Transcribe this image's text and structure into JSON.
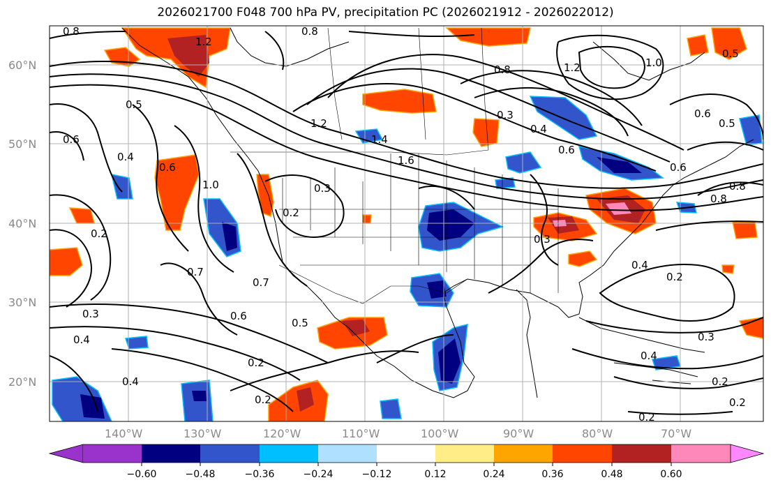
{
  "title": "2026021700 F048 700 hPa PV, precipitation PC (2026021912 - 2026022012)",
  "map": {
    "lat_labels": [
      "60°N",
      "50°N",
      "40°N",
      "30°N",
      "20°N"
    ],
    "lon_labels": [
      "140°W",
      "130°W",
      "120°W",
      "110°W",
      "100°W",
      "90°W",
      "80°W",
      "70°W"
    ],
    "extent": {
      "lon_min": -150,
      "lon_max": -62,
      "lat_min": 15,
      "lat_max": 65
    },
    "contour_labels": [
      "0.8",
      "1.2",
      "0.8",
      "0.8",
      "1.0",
      "1.2",
      "0.5",
      "0.5",
      "0.6",
      "0.4",
      "0.6",
      "1.0",
      "1.2",
      "1.4",
      "1.6",
      "0.3",
      "0.3",
      "0.4",
      "0.6",
      "0.8",
      "0.6",
      "0.5",
      "0.6",
      "0.8",
      "0.2",
      "0.2",
      "0.7",
      "0.7",
      "0.3",
      "0.4",
      "0.6",
      "0.5",
      "0.2",
      "0.2",
      "0.4",
      "0.2",
      "0.3",
      "0.4",
      "0.2",
      "0.2",
      "0.2",
      "0.3",
      "0.4"
    ]
  },
  "colorbar": {
    "ticks": [
      "−0.60",
      "−0.48",
      "−0.36",
      "−0.24",
      "−0.12",
      "0.12",
      "0.24",
      "0.36",
      "0.48",
      "0.60"
    ],
    "colors": [
      "#9933cc",
      "#000080",
      "#3355cc",
      "#00bfff",
      "#b0e0ff",
      "#ffffff",
      "#ffee88",
      "#ffa500",
      "#ff4500",
      "#b22222",
      "#ff88bb",
      "#ff88ff"
    ]
  }
}
